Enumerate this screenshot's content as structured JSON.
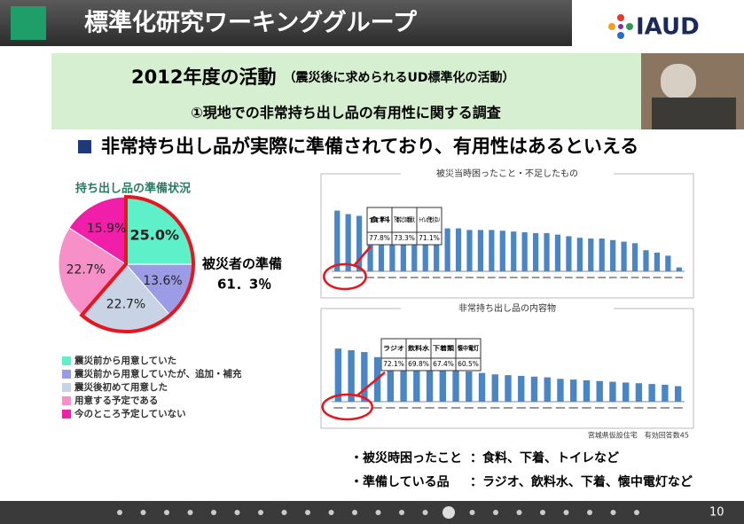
{
  "header": {
    "title": "標準化研究ワーキンググループ",
    "logo": "IAUD"
  },
  "banner": {
    "title": "2012年度の活動",
    "subtitle": "（震災後に求められるUD標準化の活動）",
    "topic": "①現地での非常持ち出し品の有用性に関する調査"
  },
  "headline": "非常持ち出し品が実際に準備されており、有用性はあるといえる",
  "chart_data": [
    {
      "type": "pie",
      "title": "持ち出し品の準備状況",
      "categories": [
        "震災前から用意していた",
        "震災前から用意していたが、追加・補充",
        "震災後初めて用意した",
        "用意する予定である",
        "今のところ予定していない"
      ],
      "values": [
        25.0,
        13.6,
        22.7,
        22.7,
        15.9
      ],
      "value_labels": [
        "25.0%",
        "13.6%",
        "22.7%",
        "22.7%",
        "15.9%"
      ],
      "colors": [
        "#5ef0c8",
        "#9b9be6",
        "#c8d4e6",
        "#f78fc8",
        "#f01ea8"
      ],
      "annotation": {
        "label": "被災者の準備",
        "value": 61.3,
        "value_label": "61．3％"
      }
    },
    {
      "type": "bar",
      "title": "被災当時困ったこと・不足したもの",
      "color": "#4a86c5",
      "ylim": [
        0,
        100
      ],
      "values": [
        77.8,
        73.3,
        71.1,
        68,
        66,
        64,
        62,
        60,
        58,
        57,
        55,
        55,
        53,
        53,
        53,
        52,
        51,
        50,
        49,
        49,
        47,
        45,
        43,
        42,
        42,
        40,
        38,
        36,
        27,
        24,
        20,
        5
      ],
      "callout": {
        "categories": [
          "食料",
          "下着などの着替え",
          "トイレが使えない"
        ],
        "values": [
          77.8,
          73.3,
          71.1
        ],
        "value_labels": [
          "77.8%",
          "73.3%",
          "71.1%"
        ]
      }
    },
    {
      "type": "bar",
      "title": "非常持ち出し品の内容物",
      "color": "#4a86c5",
      "ylim": [
        0,
        100
      ],
      "values": [
        72.1,
        69.8,
        67.4,
        60.5,
        55,
        51,
        48,
        46,
        45,
        44,
        41,
        39,
        37,
        36,
        35,
        34,
        33,
        31,
        30,
        29,
        28,
        27,
        26,
        25,
        24,
        23,
        21
      ],
      "callout": {
        "categories": [
          "ラジオ",
          "飲料水",
          "下着類",
          "懐中電灯"
        ],
        "values": [
          72.1,
          69.8,
          67.4,
          60.5
        ],
        "value_labels": [
          "72.1%",
          "69.8%",
          "67.4%",
          "60.5%"
        ]
      },
      "note": "宮城県仮設住宅　有効回答数45"
    }
  ],
  "summary": [
    {
      "label": "・被災時困ったこと",
      "text": "：食料、下着、トイレなど"
    },
    {
      "label": "・準備している品",
      "text": "：ラジオ、飲料水、下着、懐中電灯など"
    }
  ],
  "footer": {
    "page": "10"
  }
}
